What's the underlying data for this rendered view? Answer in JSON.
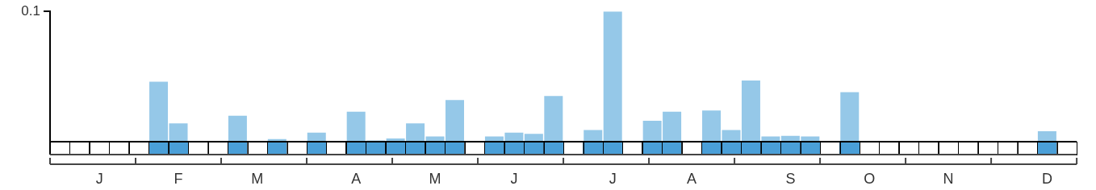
{
  "chart_data": {
    "type": "bar",
    "categories": [
      null,
      null,
      "J",
      null,
      null,
      null,
      "F",
      null,
      null,
      null,
      "M",
      null,
      null,
      null,
      null,
      "A",
      null,
      null,
      null,
      "M",
      null,
      null,
      null,
      "J",
      null,
      null,
      null,
      null,
      "J",
      null,
      null,
      null,
      "A",
      null,
      null,
      null,
      null,
      "S",
      null,
      null,
      null,
      "O",
      null,
      null,
      null,
      "N",
      null,
      null,
      null,
      null,
      "D",
      null
    ],
    "values": [
      0,
      0,
      0,
      0,
      0,
      0.046,
      0.014,
      0,
      0,
      0.02,
      0,
      0.002,
      0,
      0.007,
      0,
      0.023,
      0.001,
      0.0025,
      0.014,
      0.004,
      0.032,
      0,
      0.004,
      0.007,
      0.006,
      0.035,
      0,
      0.009,
      0.1,
      0,
      0.016,
      0.023,
      0,
      0.024,
      0.009,
      0.047,
      0.004,
      0.0045,
      0.004,
      0,
      0.038,
      0,
      0,
      0,
      0,
      0,
      0,
      0,
      0,
      0,
      0.008,
      0
    ],
    "color": "#95c8e8",
    "ylim": [
      0,
      0.1
    ],
    "yticks": [
      0.1
    ],
    "grid": false
  }
}
